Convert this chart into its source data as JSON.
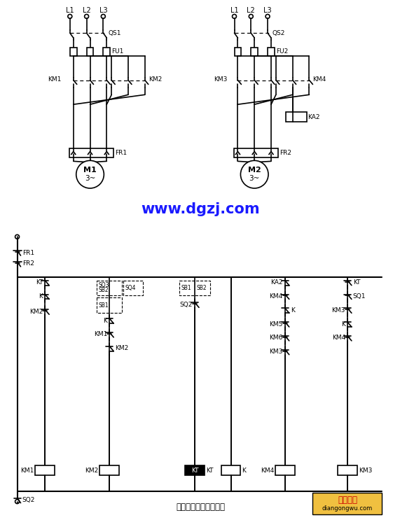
{
  "bg_color": "#ffffff",
  "line_color": "#000000",
  "blue_text": "#1a1aff",
  "website": "www.dgzj.com",
  "footer": "横梁自动升降控制线路",
  "watermark_text1": "电工之屋",
  "watermark_text2": "diangongwu.com",
  "watermark_bg": "#f0c040"
}
